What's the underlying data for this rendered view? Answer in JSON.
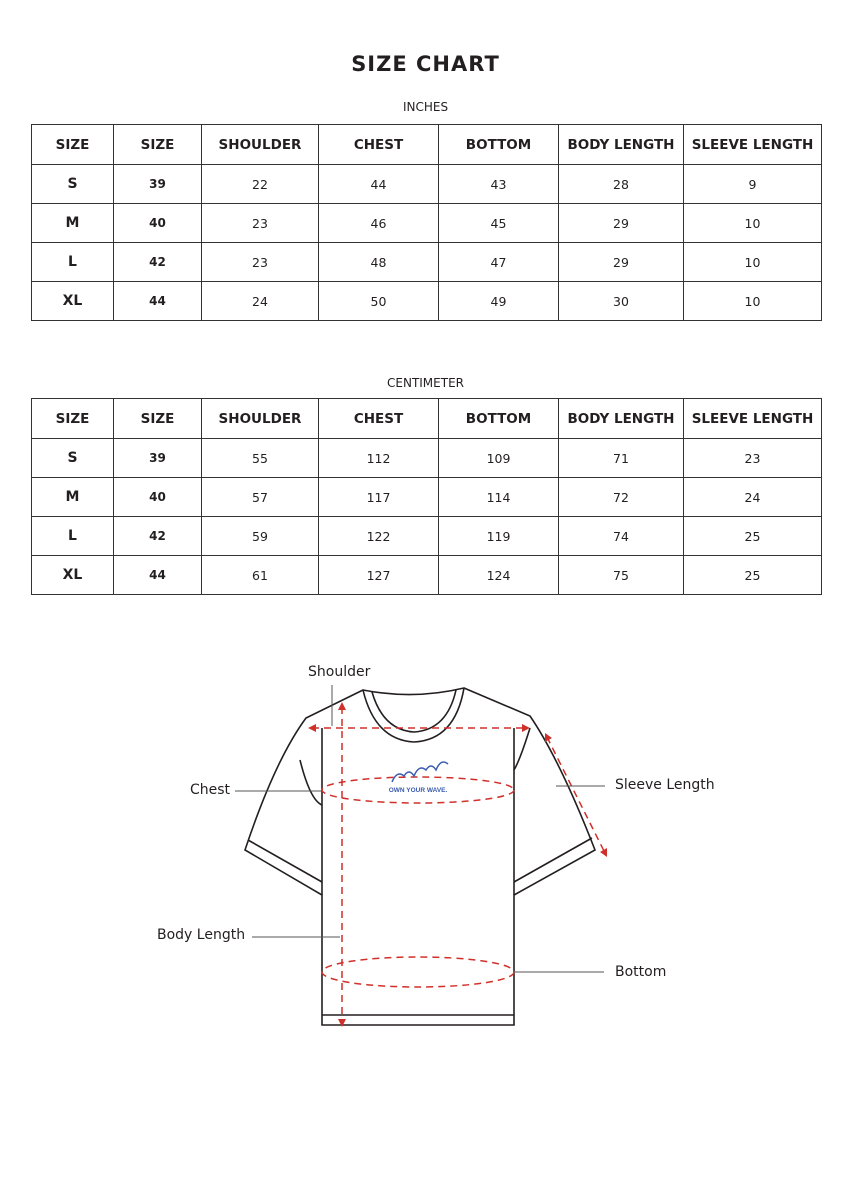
{
  "title": "SIZE CHART",
  "headers": [
    "SIZE",
    "SIZE",
    "SHOULDER",
    "CHEST",
    "BOTTOM",
    "BODY LENGTH",
    "SLEEVE LENGTH"
  ],
  "inches": {
    "label": "INCHES",
    "rows": [
      [
        "S",
        "39",
        "22",
        "44",
        "43",
        "28",
        "9"
      ],
      [
        "M",
        "40",
        "23",
        "46",
        "45",
        "29",
        "10"
      ],
      [
        "L",
        "42",
        "23",
        "48",
        "47",
        "29",
        "10"
      ],
      [
        "XL",
        "44",
        "24",
        "50",
        "49",
        "30",
        "10"
      ]
    ]
  },
  "centimeter": {
    "label": "CENTIMETER",
    "rows": [
      [
        "S",
        "39",
        "55",
        "112",
        "109",
        "71",
        "23"
      ],
      [
        "M",
        "40",
        "57",
        "117",
        "114",
        "72",
        "24"
      ],
      [
        "L",
        "42",
        "59",
        "122",
        "119",
        "74",
        "25"
      ],
      [
        "XL",
        "44",
        "61",
        "127",
        "124",
        "75",
        "25"
      ]
    ]
  },
  "diagram": {
    "shoulder": "Shoulder",
    "chest": "Chest",
    "sleeve_length": "Sleeve Length",
    "body_length": "Body Length",
    "bottom": "Bottom",
    "logo_text": "OWN YOUR WAVE.",
    "measure_color": "#d0302a",
    "logo_color": "#3a5bb0"
  }
}
